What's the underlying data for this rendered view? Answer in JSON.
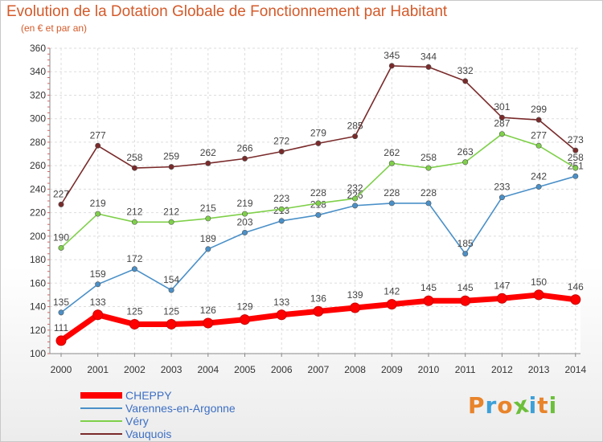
{
  "header": {
    "title": "Evolution de la Dotation Globale de Fonctionnement par Habitant",
    "subtitle": "(en € et par an)"
  },
  "logo": {
    "text": "Proxiti",
    "colors": [
      "#e8842a",
      "#3da0d8",
      "#e8842a",
      "#6cbf3a",
      "#3da0d8",
      "#e8842a",
      "#6cbf3a"
    ]
  },
  "chart_data": {
    "type": "line",
    "title": "Evolution de la Dotation Globale de Fonctionnement par Habitant",
    "subtitle": "(en € et par an)",
    "xlabel": "",
    "ylabel": "",
    "x": [
      "2000",
      "2001",
      "2002",
      "2003",
      "2004",
      "2005",
      "2006",
      "2007",
      "2008",
      "2009",
      "2010",
      "2011",
      "2012",
      "2013",
      "2014"
    ],
    "ylim": [
      100,
      360
    ],
    "yticks": [
      100,
      120,
      140,
      160,
      180,
      200,
      220,
      240,
      260,
      280,
      300,
      320,
      340,
      360
    ],
    "grid": true,
    "legend_position": "bottom-left",
    "series": [
      {
        "name": "CHEPPY",
        "color": "#ff0000",
        "emphasis": true,
        "values": [
          111,
          133,
          125,
          125,
          126,
          129,
          133,
          136,
          139,
          142,
          145,
          145,
          147,
          150,
          146
        ]
      },
      {
        "name": "Varennes-en-Argonne",
        "color": "#4a90c8",
        "values": [
          135,
          159,
          172,
          154,
          189,
          203,
          213,
          218,
          226,
          228,
          228,
          185,
          233,
          242,
          251
        ]
      },
      {
        "name": "Véry",
        "color": "#7fd04a",
        "values": [
          190,
          219,
          212,
          212,
          215,
          219,
          223,
          228,
          232,
          262,
          258,
          263,
          287,
          277,
          258
        ]
      },
      {
        "name": "Vauquois",
        "color": "#7a2a2a",
        "values": [
          227,
          277,
          258,
          259,
          262,
          266,
          272,
          279,
          285,
          345,
          344,
          332,
          301,
          299,
          273
        ]
      }
    ]
  }
}
